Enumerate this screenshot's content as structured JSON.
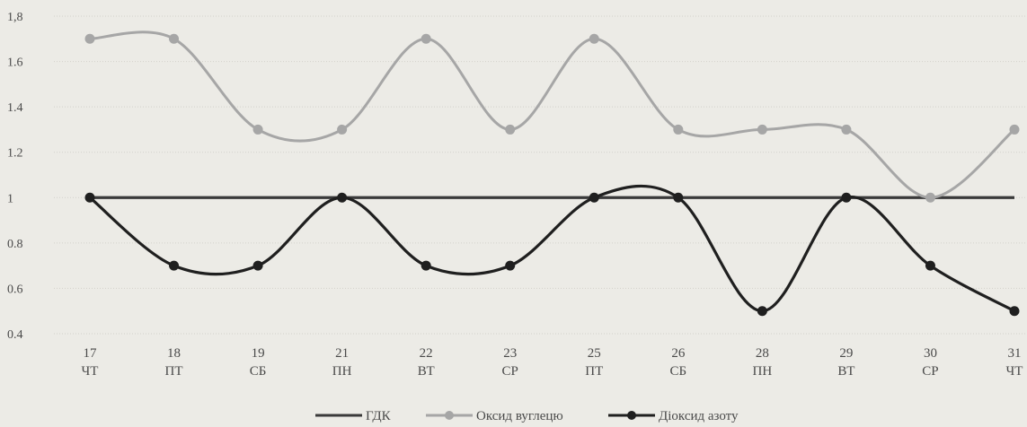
{
  "chart_data": {
    "type": "line",
    "categories": [
      [
        "17",
        "ЧТ"
      ],
      [
        "18",
        "ПТ"
      ],
      [
        "19",
        "СБ"
      ],
      [
        "21",
        "ПН"
      ],
      [
        "22",
        "ВТ"
      ],
      [
        "23",
        "СР"
      ],
      [
        "25",
        "ПТ"
      ],
      [
        "26",
        "СБ"
      ],
      [
        "28",
        "ПН"
      ],
      [
        "29",
        "ВТ"
      ],
      [
        "30",
        "СР"
      ],
      [
        "31",
        "ЧТ"
      ]
    ],
    "ylim": [
      0.4,
      1.8
    ],
    "yticks": [
      "0.4",
      "0.6",
      "0.8",
      "1",
      "1.2",
      "1.4",
      "1.6",
      "1,8"
    ],
    "grid": true,
    "legend_position": "bottom",
    "series": [
      {
        "name": "ГДК",
        "color": "#3a3a3a",
        "markers": false,
        "values": [
          1,
          1,
          1,
          1,
          1,
          1,
          1,
          1,
          1,
          1,
          1,
          1
        ]
      },
      {
        "name": "Оксид вуглецю",
        "color": "#a6a6a6",
        "markers": true,
        "values": [
          1.7,
          1.7,
          1.3,
          1.3,
          1.7,
          1.3,
          1.7,
          1.3,
          1.3,
          1.3,
          1.0,
          1.3
        ]
      },
      {
        "name": "Діоксид азоту",
        "color": "#1f1f1f",
        "markers": true,
        "values": [
          1.0,
          0.7,
          0.7,
          1.0,
          0.7,
          0.7,
          1.0,
          1.0,
          0.5,
          1.0,
          0.7,
          0.5
        ]
      }
    ]
  }
}
